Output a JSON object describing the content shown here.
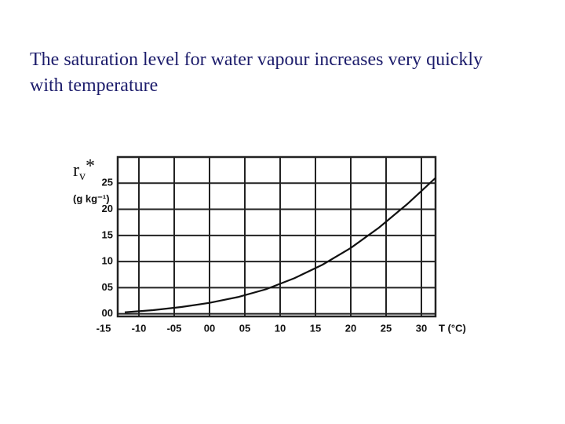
{
  "chart_data": {
    "type": "line",
    "title": "The saturation level for water vapour increases very quickly with temperature",
    "y_symbol": {
      "base": "r",
      "subscript": "v",
      "superscript": "*"
    },
    "y_unit": "(g kg⁻¹)",
    "x_label": "T (°C)",
    "x": [
      -12,
      -8,
      -4,
      0,
      4,
      8,
      12,
      16,
      20,
      24,
      28,
      32
    ],
    "series": [
      {
        "color": "#111111",
        "values": [
          0.3,
          0.7,
          1.3,
          2.1,
          3.2,
          4.7,
          6.8,
          9.4,
          12.6,
          16.5,
          21,
          26
        ]
      }
    ],
    "xlim": [
      -13,
      32
    ],
    "ylim": [
      -0.5,
      30
    ],
    "xticks": [
      -15,
      -10,
      {
        "value": -5,
        "label": "-05"
      },
      {
        "value": 0,
        "label": "00"
      },
      {
        "value": 5,
        "label": "05"
      },
      10,
      15,
      20,
      25,
      30
    ],
    "yticks": [
      {
        "value": 0,
        "label": "00"
      },
      {
        "value": 5,
        "label": "05"
      },
      10,
      15,
      20,
      25
    ],
    "grid": true
  }
}
